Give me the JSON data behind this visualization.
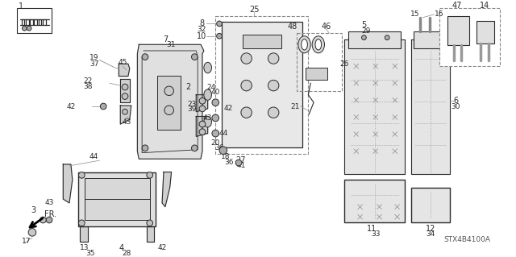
{
  "bg_color": "#ffffff",
  "lc": "#2a2a2a",
  "tc": "#2a2a2a",
  "gc": "#888888",
  "part_number": "STX4B4100A",
  "figsize": [
    6.4,
    3.19
  ],
  "dpi": 100
}
